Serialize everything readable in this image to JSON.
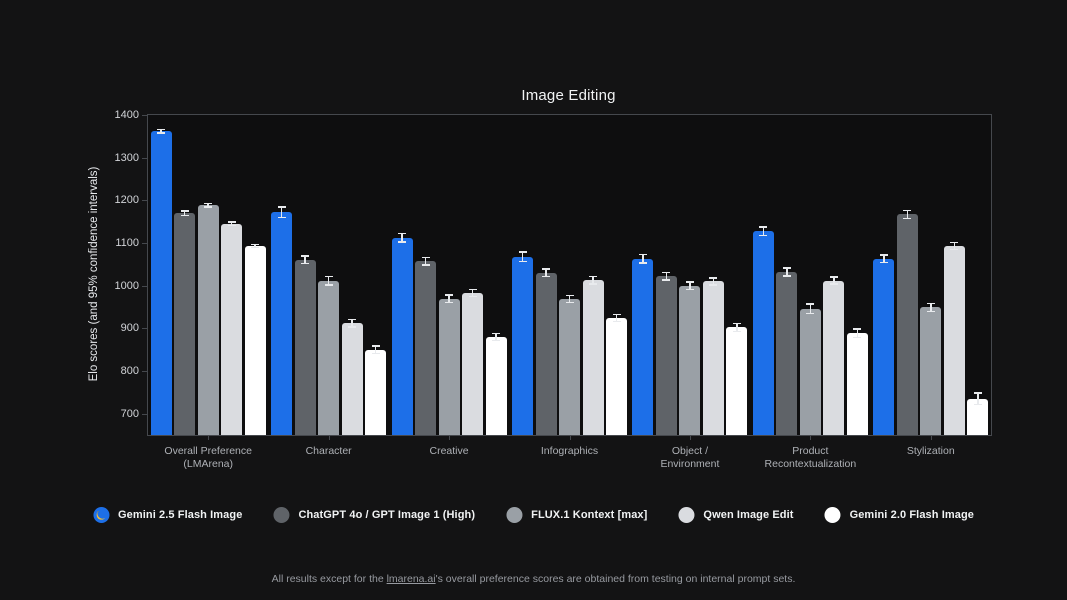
{
  "chart_data": {
    "type": "bar",
    "title": "Image Editing",
    "ylabel": "Elo scores (and 95% confidence intervals)",
    "ylim": [
      650,
      1400
    ],
    "yticks": [
      700,
      800,
      900,
      1000,
      1100,
      1200,
      1300,
      1400
    ],
    "grid": false,
    "legend_position": "bottom",
    "categories": [
      "Overall Preference\n(LMArena)",
      "Character",
      "Creative",
      "Infographics",
      "Object /\nEnvironment",
      "Product\nRecontextualization",
      "Stylization"
    ],
    "series": [
      {
        "name": "Gemini 2.5 Flash Image",
        "color": "#1d6fe8",
        "icon": "banana-icon",
        "values": [
          1362,
          1172,
          1112,
          1068,
          1063,
          1128,
          1063
        ],
        "ci": [
          4,
          12,
          10,
          11,
          10,
          10,
          9
        ]
      },
      {
        "name": "ChatGPT 4o / GPT Image 1 (High)",
        "color": "#5f6368",
        "values": [
          1170,
          1061,
          1057,
          1030,
          1022,
          1032,
          1167
        ],
        "ci": [
          5,
          9,
          9,
          9,
          9,
          9,
          9
        ]
      },
      {
        "name": "FLUX.1 Kontext [max]",
        "color": "#9aa0a6",
        "values": [
          1188,
          1012,
          969,
          969,
          1000,
          946,
          949
        ],
        "ci": [
          4,
          10,
          9,
          8,
          9,
          11,
          9
        ]
      },
      {
        "name": "Qwen Image Edit",
        "color": "#dadce0",
        "values": [
          1145,
          912,
          983,
          1013,
          1010,
          1012,
          1093
        ],
        "ci": [
          4,
          9,
          8,
          9,
          8,
          8,
          8
        ]
      },
      {
        "name": "Gemini 2.0 Flash Image",
        "color": "#ffffff",
        "values": [
          1093,
          850,
          880,
          924,
          902,
          889,
          735
        ],
        "ci": [
          4,
          9,
          8,
          8,
          9,
          10,
          13
        ]
      }
    ]
  },
  "footnote": {
    "prefix": "All results except for the ",
    "link_text": "lmarena.ai",
    "suffix": "'s overall preference scores are obtained from testing on internal prompt sets."
  },
  "colors": {
    "background": "#131314",
    "plot_border": "#45484d",
    "error_bar": "#e8eaed",
    "banana": "#fbc02d"
  }
}
